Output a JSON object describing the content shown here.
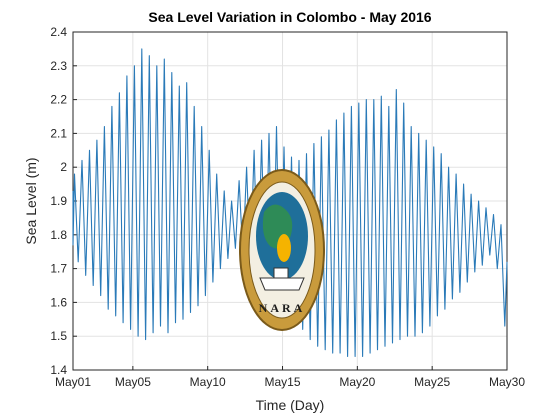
{
  "chart_data": {
    "type": "line",
    "title": "Sea Level Variation in Colombo - May 2016",
    "xlabel": "Time (Day)",
    "ylabel": "Sea Level (m)",
    "xlim": [
      0,
      29
    ],
    "ylim": [
      1.4,
      2.4
    ],
    "grid": true,
    "xticks": [
      {
        "value": 0,
        "label": "May01"
      },
      {
        "value": 4,
        "label": "May05"
      },
      {
        "value": 9,
        "label": "May10"
      },
      {
        "value": 14,
        "label": "May15"
      },
      {
        "value": 19,
        "label": "May20"
      },
      {
        "value": 24,
        "label": "May25"
      },
      {
        "value": 29,
        "label": "May30"
      }
    ],
    "yticks": [
      1.4,
      1.5,
      1.6,
      1.7,
      1.8,
      1.9,
      2.0,
      2.1,
      2.2,
      2.3,
      2.4
    ],
    "series": [
      {
        "color": "#2a7ab8",
        "x": [
          -0.35,
          -0.15,
          0.1,
          0.35,
          0.6,
          0.85,
          1.1,
          1.35,
          1.6,
          1.85,
          2.1,
          2.35,
          2.6,
          2.85,
          3.1,
          3.35,
          3.6,
          3.85,
          4.1,
          4.35,
          4.6,
          4.85,
          5.1,
          5.35,
          5.6,
          5.85,
          6.1,
          6.35,
          6.6,
          6.85,
          7.1,
          7.35,
          7.6,
          7.85,
          8.1,
          8.35,
          8.6,
          8.85,
          9.1,
          9.35,
          9.6,
          9.85,
          10.1,
          10.35,
          10.6,
          10.85,
          11.1,
          11.35,
          11.6,
          11.85,
          12.1,
          12.35,
          12.6,
          12.85,
          13.1,
          13.35,
          13.6,
          13.85,
          14.1,
          14.35,
          14.6,
          14.85,
          15.1,
          15.35,
          15.6,
          15.85,
          16.1,
          16.35,
          16.6,
          16.85,
          17.1,
          17.35,
          17.6,
          17.85,
          18.1,
          18.35,
          18.6,
          18.85,
          19.1,
          19.35,
          19.6,
          19.85,
          20.1,
          20.35,
          20.6,
          20.85,
          21.1,
          21.35,
          21.6,
          21.85,
          22.1,
          22.35,
          22.6,
          22.85,
          23.1,
          23.35,
          23.6,
          23.85,
          24.1,
          24.35,
          24.6,
          24.85,
          25.1,
          25.35,
          25.6,
          25.85,
          26.1,
          26.35,
          26.6,
          26.85,
          27.1,
          27.35,
          27.6,
          27.85,
          28.1,
          28.35,
          28.6,
          28.85,
          29.0
        ],
        "y": [
          1.93,
          1.77,
          1.98,
          1.72,
          2.02,
          1.68,
          2.05,
          1.65,
          2.08,
          1.62,
          2.12,
          1.58,
          2.18,
          1.56,
          2.22,
          1.54,
          2.27,
          1.52,
          2.3,
          1.5,
          2.35,
          1.49,
          2.33,
          1.51,
          2.3,
          1.53,
          2.32,
          1.51,
          2.28,
          1.54,
          2.24,
          1.55,
          2.25,
          1.57,
          2.18,
          1.59,
          2.12,
          1.62,
          2.05,
          1.66,
          1.98,
          1.7,
          1.93,
          1.73,
          1.9,
          1.76,
          1.96,
          1.74,
          2.0,
          1.7,
          2.05,
          1.66,
          2.08,
          1.63,
          2.1,
          1.6,
          2.12,
          1.58,
          2.06,
          1.56,
          2.03,
          1.53,
          2.02,
          1.52,
          2.04,
          1.49,
          2.07,
          1.47,
          2.09,
          1.46,
          2.11,
          1.45,
          2.14,
          1.45,
          2.16,
          1.44,
          2.18,
          1.44,
          2.19,
          1.44,
          2.2,
          1.45,
          2.2,
          1.46,
          2.21,
          1.47,
          2.18,
          1.48,
          2.23,
          1.49,
          2.19,
          1.5,
          2.12,
          1.5,
          2.1,
          1.51,
          2.08,
          1.53,
          2.06,
          1.56,
          2.04,
          1.58,
          2.0,
          1.61,
          1.98,
          1.63,
          1.95,
          1.66,
          1.92,
          1.69,
          1.9,
          1.71,
          1.88,
          1.74,
          1.86,
          1.7,
          1.83,
          1.53,
          1.72
        ]
      }
    ]
  },
  "logo": {
    "text": "NARA"
  }
}
